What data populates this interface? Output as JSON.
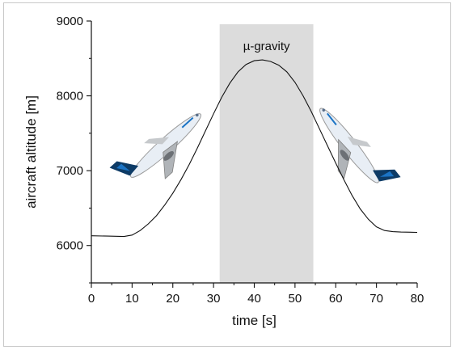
{
  "chart_data": {
    "type": "line",
    "title": "",
    "xlabel": "time [s]",
    "ylabel": "aircraft altitude [m]",
    "xlim": [
      0,
      80
    ],
    "ylim": [
      5500,
      9000
    ],
    "xticks": [
      0,
      10,
      20,
      30,
      40,
      50,
      60,
      70,
      80
    ],
    "yticks": [
      6000,
      7000,
      8000,
      9000
    ],
    "grid": false,
    "shaded_region": {
      "label": "µ-gravity",
      "x_start": 31.5,
      "x_end": 54.5,
      "color": "#dcdcdc"
    },
    "series": [
      {
        "color": "#111111",
        "x": [
          0,
          4,
          8,
          10,
          12,
          14,
          16,
          18,
          20,
          22,
          24,
          26,
          28,
          30,
          32,
          34,
          36,
          38,
          40,
          42,
          44,
          46,
          48,
          50,
          52,
          54,
          56,
          58,
          60,
          62,
          64,
          66,
          68,
          70,
          72,
          74,
          76,
          80
        ],
        "y": [
          6130,
          6125,
          6120,
          6140,
          6200,
          6290,
          6400,
          6540,
          6700,
          6880,
          7080,
          7300,
          7530,
          7760,
          7980,
          8170,
          8320,
          8420,
          8470,
          8480,
          8460,
          8410,
          8320,
          8180,
          8000,
          7790,
          7560,
          7330,
          7100,
          6880,
          6670,
          6490,
          6350,
          6250,
          6200,
          6185,
          6180,
          6175
        ]
      }
    ]
  },
  "decorations": [
    {
      "name": "aircraft-climb-illustration",
      "colors": [
        "#0d3b66",
        "#1b74c5",
        "#e8eef5",
        "#9a9a9a"
      ]
    },
    {
      "name": "aircraft-descent-illustration",
      "colors": [
        "#0d3b66",
        "#1b74c5",
        "#e8eef5",
        "#9a9a9a"
      ]
    }
  ]
}
